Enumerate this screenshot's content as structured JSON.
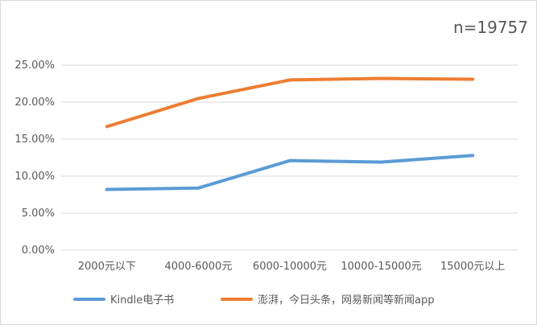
{
  "annotation": "n=19757",
  "chart_data": {
    "type": "line",
    "title": "",
    "xlabel": "",
    "ylabel": "",
    "categories": [
      "2000元以下",
      "4000-6000元",
      "6000-10000元",
      "10000-15000元",
      "15000元以上"
    ],
    "ylim": [
      0,
      25
    ],
    "y_ticks": [
      "0.00%",
      "5.00%",
      "10.00%",
      "15.00%",
      "20.00%",
      "25.00%"
    ],
    "grid": true,
    "legend_position": "bottom",
    "series": [
      {
        "name": "Kindle电子书",
        "color": "#5b9bd5",
        "values": [
          8.2,
          8.4,
          12.1,
          11.9,
          12.8
        ]
      },
      {
        "name": "澎湃，今日头条，网易新闻等新闻app",
        "color": "#ed7d31",
        "values": [
          16.7,
          20.5,
          23.0,
          23.2,
          23.1
        ]
      }
    ]
  }
}
